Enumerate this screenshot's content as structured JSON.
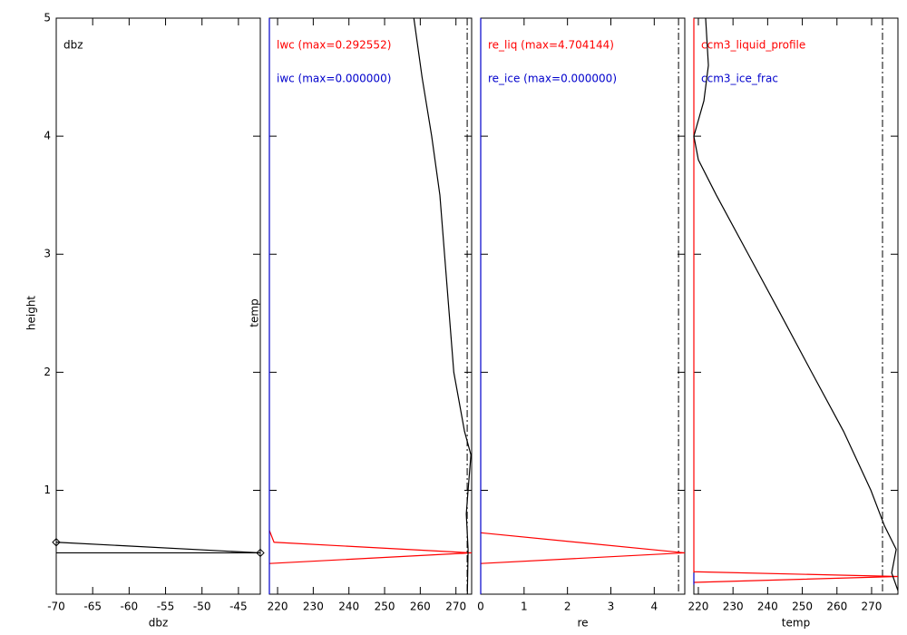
{
  "chart_data": [
    {
      "type": "line",
      "ylabel": "height",
      "xlabel": "dbz",
      "xlim": [
        -70,
        -42
      ],
      "xticks": [
        -70,
        -65,
        -60,
        -55,
        -50,
        -45
      ],
      "ylim": [
        0.12,
        5
      ],
      "yticks": [
        1,
        2,
        3,
        4,
        5
      ],
      "series": [
        {
          "name": "dbz",
          "color": "#000000",
          "marker": "diamond",
          "x": [
            -70,
            -42
          ],
          "values": [
            0.56,
            0.47
          ]
        },
        {
          "color": "#000000",
          "x": [
            -70,
            -42
          ],
          "values": [
            0.47,
            0.47
          ]
        }
      ]
    },
    {
      "type": "line",
      "ylabel": "temp",
      "xlim": [
        217.7,
        274.4
      ],
      "xticks": [
        220,
        230,
        240,
        250,
        260,
        270
      ],
      "ylim": [
        0.12,
        5
      ],
      "vline": 273.15,
      "series": [
        {
          "name": "lwc (max=0.292552)",
          "color": "#ff0000",
          "x": [
            217.7,
            219.0,
            274.4,
            217.7
          ],
          "values": [
            0.66,
            0.56,
            0.47,
            0.38
          ]
        },
        {
          "name": "iwc (max=0.000000)",
          "color": "#0000cc",
          "x": [
            217.7,
            217.7
          ],
          "values": [
            0.12,
            5
          ]
        },
        {
          "color": "#000000",
          "x": [
            258.2,
            260.5,
            263.2,
            265.5,
            266.8,
            268.1,
            269.4,
            272.4,
            274.2,
            273.4,
            272.9,
            273.4,
            273.2
          ],
          "values": [
            5,
            4.5,
            4,
            3.5,
            3,
            2.5,
            2,
            1.5,
            1.3,
            1,
            0.8,
            0.5,
            0.12
          ]
        }
      ]
    },
    {
      "type": "line",
      "xlabel": "re",
      "xlim": [
        0,
        4.704144
      ],
      "xticks": [
        0,
        1,
        2,
        3,
        4
      ],
      "ylim": [
        0.12,
        5
      ],
      "vline": 4.56,
      "series": [
        {
          "name": "re_liq (max=4.704144)",
          "color": "#ff0000",
          "x": [
            0,
            4.704144,
            0
          ],
          "values": [
            0.64,
            0.47,
            0.38
          ]
        },
        {
          "name": "re_ice (max=0.000000)",
          "color": "#0000cc",
          "x": [
            0,
            0
          ],
          "values": [
            0.12,
            5
          ]
        }
      ]
    },
    {
      "type": "line",
      "xlabel": "temp",
      "xlim": [
        218.7,
        277.6
      ],
      "xticks": [
        220,
        230,
        240,
        250,
        260,
        270
      ],
      "ylim": [
        0.12,
        5
      ],
      "vline": 273.15,
      "series": [
        {
          "name": "ccm3_liquid_profile",
          "color": "#ff0000",
          "x": [
            218.7,
            218.7,
            277.6,
            218.7
          ],
          "values": [
            5,
            0.31,
            0.27,
            0.22
          ]
        },
        {
          "name": "ccm3_ice_frac",
          "color": "#0000cc",
          "x": [
            218.7,
            218.7
          ],
          "values": [
            0.3,
            0.2
          ]
        },
        {
          "color": "#000000",
          "x": [
            222.1,
            222.9,
            221.6,
            218.7,
            220.0,
            225.2,
            234.4,
            243.6,
            252.7,
            261.9,
            269.8,
            273.7,
            277.1,
            275.8,
            277.6
          ],
          "values": [
            5,
            4.6,
            4.3,
            4,
            3.8,
            3.5,
            3,
            2.5,
            2,
            1.5,
            1,
            0.7,
            0.5,
            0.3,
            0.15
          ]
        }
      ]
    }
  ]
}
